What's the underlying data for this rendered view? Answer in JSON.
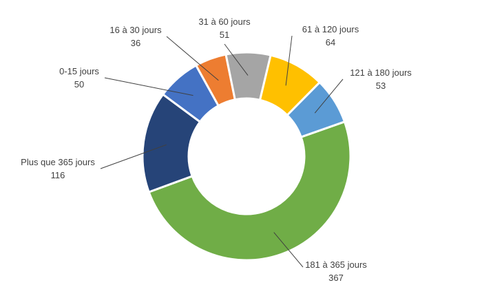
{
  "chart_data": {
    "type": "donut",
    "title": "",
    "legend": "none",
    "slices": [
      {
        "label": "0-15 jours",
        "value": 50,
        "color": "#4472C4"
      },
      {
        "label": "16 à 30 jours",
        "value": 36,
        "color": "#ED7D31"
      },
      {
        "label": "31 à 60 jours",
        "value": 51,
        "color": "#A5A5A5"
      },
      {
        "label": "61 à 120 jours",
        "value": 64,
        "color": "#FFC000"
      },
      {
        "label": "121 à 180 jours",
        "value": 53,
        "color": "#5B9BD5"
      },
      {
        "label": "181 à 365 jours",
        "value": 367,
        "color": "#70AD47"
      },
      {
        "label": "Plus que 365 jours",
        "value": 116,
        "color": "#264478"
      }
    ]
  }
}
